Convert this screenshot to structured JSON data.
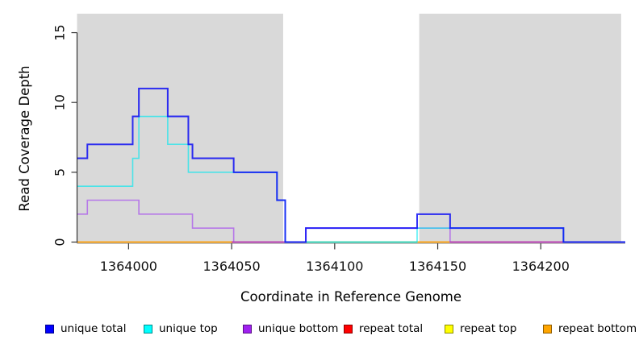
{
  "chart_data": {
    "type": "line",
    "subtype": "step-coverage",
    "title": "",
    "xlabel": "Coordinate in Reference Genome",
    "ylabel": "Read Coverage Depth",
    "xlim": [
      1363975,
      1364241
    ],
    "ylim": [
      0,
      16.4
    ],
    "x_ticks": [
      1364000,
      1364050,
      1364100,
      1364150,
      1364200
    ],
    "y_ticks": [
      0,
      5,
      10,
      15
    ],
    "grid": false,
    "legend_position": "bottom",
    "shaded_regions": [
      {
        "name": "repeat-region-1",
        "from": 1363975,
        "to": 1364075,
        "color": "#d9d9d9"
      },
      {
        "name": "repeat-region-2",
        "from": 1364141,
        "to": 1364239,
        "color": "#d9d9d9"
      }
    ],
    "series": [
      {
        "name": "unique total",
        "color": "#0505f5",
        "opacity": 0.82,
        "width": 2,
        "points": [
          [
            1363975,
            6
          ],
          [
            1363980,
            7
          ],
          [
            1364002,
            9
          ],
          [
            1364005,
            11
          ],
          [
            1364019,
            9
          ],
          [
            1364029,
            7
          ],
          [
            1364031,
            6
          ],
          [
            1364051,
            5
          ],
          [
            1364072,
            3
          ],
          [
            1364076,
            0
          ],
          [
            1364086,
            1
          ],
          [
            1364140,
            2
          ],
          [
            1364156,
            1
          ],
          [
            1364211,
            0
          ]
        ],
        "end": 1364241
      },
      {
        "name": "unique top",
        "color": "#00e8f0",
        "opacity": 0.66,
        "width": 1.6,
        "points": [
          [
            1363975,
            4
          ],
          [
            1364002,
            6
          ],
          [
            1364005,
            9
          ],
          [
            1364019,
            7
          ],
          [
            1364029,
            5
          ],
          [
            1364072,
            3
          ],
          [
            1364076,
            0
          ],
          [
            1364140,
            1
          ],
          [
            1364211,
            0
          ]
        ],
        "end": 1364241
      },
      {
        "name": "unique bottom",
        "color": "#a03cf0",
        "opacity": 0.62,
        "width": 1.6,
        "points": [
          [
            1363975,
            2
          ],
          [
            1363980,
            3
          ],
          [
            1364005,
            2
          ],
          [
            1364031,
            1
          ],
          [
            1364051,
            0
          ],
          [
            1364086,
            1
          ],
          [
            1364156,
            0
          ]
        ],
        "end": 1364241
      },
      {
        "name": "repeat total",
        "color": "#d5306e",
        "opacity": 1,
        "width": 1.6,
        "draw": false,
        "points": [
          [
            1363975,
            0
          ]
        ],
        "end": 1364241
      },
      {
        "name": "repeat top",
        "color": "#ffff00",
        "opacity": 1,
        "width": 1.6,
        "draw": false,
        "points": [
          [
            1363975,
            0
          ]
        ],
        "end": 1364241
      },
      {
        "name": "repeat bottom",
        "color": "#ff9d00",
        "opacity": 1,
        "width": 1.6,
        "draw": false,
        "points": [
          [
            1363975,
            0
          ]
        ],
        "end": 1364241
      }
    ],
    "baseline_segments": [
      {
        "from": 1363975,
        "to": 1364050,
        "color": "#ff9d00"
      },
      {
        "from": 1364050,
        "to": 1364086,
        "color": "#d5306e"
      },
      {
        "from": 1364086,
        "to": 1364140,
        "color": "#63b96a"
      },
      {
        "from": 1364140,
        "to": 1364156,
        "color": "#ff9d00"
      },
      {
        "from": 1364156,
        "to": 1364241,
        "color": "#d5306e"
      }
    ]
  },
  "legend": {
    "items": [
      {
        "label": "unique total",
        "color": "#0000ff"
      },
      {
        "label": "unique top",
        "color": "#00ffff"
      },
      {
        "label": "unique bottom",
        "color": "#a020f0"
      },
      {
        "label": "repeat total",
        "color": "#ff0000"
      },
      {
        "label": "repeat top",
        "color": "#ffff00"
      },
      {
        "label": "repeat bottom",
        "color": "#ffa500"
      }
    ]
  }
}
